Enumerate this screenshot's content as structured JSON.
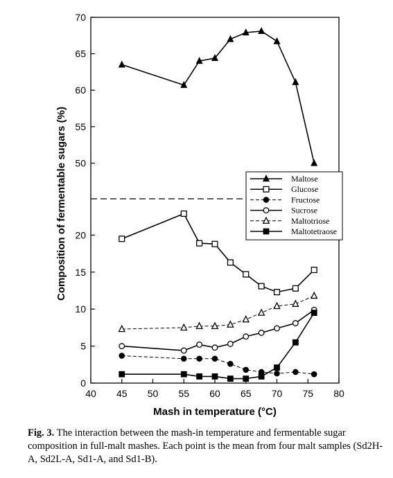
{
  "chart_data": {
    "type": "line",
    "xlabel": "Mash in temperature (°C)",
    "ylabel": "Composition of fermentable sugars (%)",
    "xlim": [
      40,
      80
    ],
    "x_ticks": [
      "40",
      "45",
      "50",
      "55",
      "60",
      "65",
      "70",
      "75",
      "80"
    ],
    "upper_y_ticks": [
      "50",
      "55",
      "60",
      "65",
      "70"
    ],
    "lower_y_ticks": [
      "0",
      "5",
      "10",
      "15",
      "20"
    ],
    "axis_break": "dashed line between 20 and 50",
    "grid": false,
    "legend_position": "right-middle",
    "series": [
      {
        "name": "Maltose",
        "marker": "filled-triangle",
        "line": "solid",
        "x": [
          45,
          55,
          57.5,
          60,
          62.5,
          65,
          67.5,
          70,
          73,
          76
        ],
        "y": [
          63.5,
          60.7,
          64.0,
          64.4,
          67.0,
          67.9,
          68.1,
          66.7,
          61.1,
          50.0
        ]
      },
      {
        "name": "Glucose",
        "marker": "open-square",
        "line": "solid",
        "x": [
          45,
          55,
          57.5,
          60,
          62.5,
          65,
          67.5,
          70,
          73,
          76
        ],
        "y": [
          19.5,
          22.9,
          18.9,
          18.8,
          16.3,
          14.7,
          13.1,
          12.3,
          12.8,
          15.3
        ]
      },
      {
        "name": "Fructose",
        "marker": "filled-circle",
        "line": "dashed",
        "x": [
          45,
          55,
          57.5,
          60,
          62.5,
          65,
          67.5,
          70,
          73,
          76
        ],
        "y": [
          3.7,
          3.3,
          3.3,
          3.3,
          2.6,
          1.8,
          1.5,
          1.3,
          1.5,
          1.2
        ]
      },
      {
        "name": "Sucrose",
        "marker": "open-circle",
        "line": "solid",
        "x": [
          45,
          55,
          57.5,
          60,
          62.5,
          65,
          67.5,
          70,
          73,
          76
        ],
        "y": [
          5.0,
          4.4,
          5.2,
          4.8,
          5.3,
          6.3,
          6.8,
          7.4,
          8.1,
          9.9
        ]
      },
      {
        "name": "Maltotriose",
        "marker": "open-triangle",
        "line": "dashed",
        "x": [
          45,
          55,
          57.5,
          60,
          62.5,
          65,
          67.5,
          70,
          73,
          76
        ],
        "y": [
          7.3,
          7.5,
          7.7,
          7.7,
          7.9,
          8.6,
          9.5,
          10.4,
          10.7,
          11.8
        ]
      },
      {
        "name": "Maltotetraose",
        "marker": "filled-square",
        "line": "solid",
        "x": [
          45,
          55,
          57.5,
          60,
          62.5,
          65,
          67.5,
          70,
          73,
          76
        ],
        "y": [
          1.2,
          1.2,
          0.9,
          0.9,
          0.6,
          0.6,
          0.9,
          2.1,
          5.5,
          9.5
        ]
      }
    ]
  },
  "caption": {
    "label": "Fig. 3.",
    "text": "The interaction between the mash-in temperature and fermentable sugar composition in full-malt mashes. Each point is the mean from four malt samples (Sd2H-A, Sd2L-A, Sd1-A, and Sd1-B)."
  }
}
